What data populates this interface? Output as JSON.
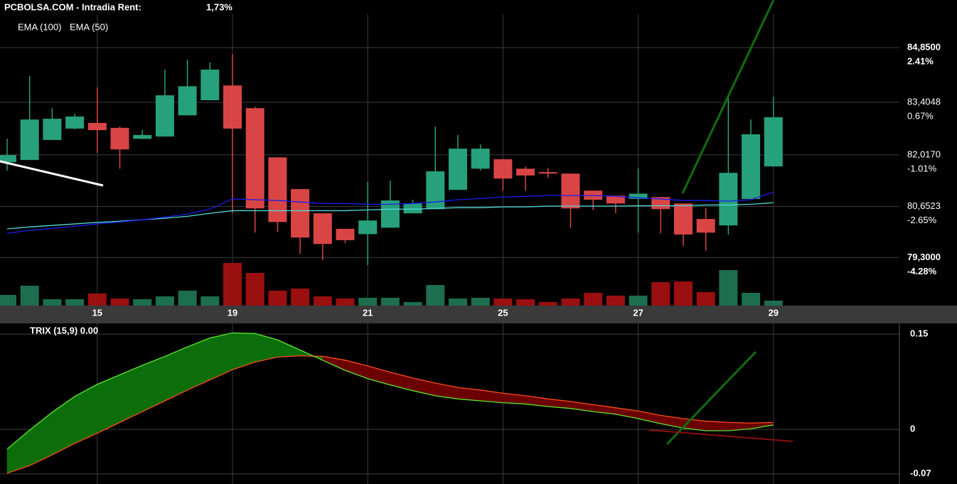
{
  "chart_data": [
    {
      "type": "candlestick",
      "title": "PCBOLSA.COM - Intradia  Rent:",
      "rent": "1,73%",
      "rent_color": "#3ce03c",
      "categories": [
        null,
        null,
        null,
        null,
        "15",
        null,
        null,
        null,
        null,
        null,
        "19",
        null,
        null,
        null,
        null,
        null,
        "21",
        null,
        null,
        null,
        null,
        null,
        "25",
        null,
        null,
        null,
        null,
        null,
        "27",
        null,
        null,
        null,
        null,
        null,
        "29"
      ],
      "open": [
        81.82,
        81.88,
        82.41,
        82.71,
        82.86,
        82.73,
        82.44,
        82.5,
        83.06,
        83.46,
        83.85,
        83.25,
        81.95,
        81.11,
        80.47,
        80.06,
        79.92,
        80.09,
        80.47,
        80.58,
        81.09,
        81.65,
        81.9,
        81.65,
        81.56,
        81.52,
        81.07,
        80.94,
        80.85,
        80.9,
        80.73,
        80.32,
        80.15,
        80.85,
        81.71
      ],
      "high": [
        82.44,
        84.1,
        83.25,
        83.1,
        83.8,
        82.76,
        82.67,
        84.27,
        84.53,
        84.46,
        84.68,
        83.29,
        81.95,
        81.11,
        80.47,
        80.06,
        81.3,
        81.33,
        80.83,
        82.76,
        82.54,
        82.29,
        81.9,
        81.71,
        81.67,
        81.52,
        81.07,
        80.94,
        81.65,
        80.9,
        80.73,
        80.6,
        83.52,
        82.95,
        83.55
      ],
      "low": [
        81.6,
        81.88,
        82.41,
        82.69,
        82.07,
        81.65,
        82.43,
        82.5,
        83.06,
        83.46,
        80.47,
        79.96,
        79.98,
        79.4,
        79.23,
        79.68,
        79.1,
        80.09,
        80.47,
        80.58,
        81.09,
        81.6,
        81.07,
        81.07,
        81.41,
        80.09,
        80.56,
        80.47,
        79.96,
        79.94,
        79.61,
        79.49,
        79.91,
        80.85,
        81.71
      ],
      "close": [
        82.01,
        82.95,
        82.97,
        83.03,
        82.67,
        82.16,
        82.54,
        83.59,
        83.83,
        84.27,
        82.71,
        80.6,
        80.24,
        79.83,
        79.66,
        79.76,
        80.28,
        80.81,
        80.73,
        81.58,
        82.18,
        82.18,
        81.39,
        81.47,
        81.52,
        80.6,
        80.83,
        80.73,
        80.99,
        80.58,
        79.91,
        79.96,
        81.54,
        82.56,
        83.01
      ],
      "up_color": "#26a17b",
      "down_color": "#d94545",
      "volume": [
        15,
        28,
        9,
        9,
        17,
        10,
        9,
        13,
        21,
        13,
        60,
        46,
        21,
        24,
        13,
        10,
        11,
        11,
        5,
        29,
        10,
        11,
        10,
        9,
        5,
        10,
        18,
        14,
        14,
        33,
        34,
        19,
        50,
        18,
        7
      ],
      "volume_up_color": "#1c6e4f",
      "volume_down_color": "#9a0f0f",
      "series": [
        {
          "name": "EMA (100)",
          "color": "#52d8d8",
          "values": [
            80.06,
            80.11,
            80.15,
            80.19,
            80.23,
            80.26,
            80.3,
            80.34,
            80.39,
            80.47,
            80.54,
            80.54,
            80.54,
            80.54,
            80.54,
            80.54,
            80.56,
            80.58,
            80.58,
            80.6,
            80.62,
            80.62,
            80.64,
            80.64,
            80.66,
            80.66,
            80.66,
            80.66,
            80.67,
            80.67,
            80.67,
            80.69,
            80.69,
            80.71,
            80.75
          ]
        },
        {
          "name": "EMA (50)",
          "color": "#1c1cf0",
          "values": [
            79.94,
            80.02,
            80.07,
            80.13,
            80.19,
            80.24,
            80.3,
            80.37,
            80.45,
            80.58,
            80.85,
            80.83,
            80.81,
            80.77,
            80.73,
            80.73,
            80.71,
            80.71,
            80.73,
            80.77,
            80.83,
            80.86,
            80.9,
            80.92,
            80.94,
            80.94,
            80.94,
            80.92,
            80.88,
            80.85,
            80.81,
            80.81,
            80.79,
            80.83,
            81.03
          ]
        }
      ],
      "ylim": [
        78.03,
        86.11
      ],
      "yticks": [
        {
          "value": 84.85,
          "label": "84,8500"
        },
        {
          "value": 83.4048,
          "label": "83,4048"
        },
        {
          "value": 82.017,
          "label": "82,0170"
        },
        {
          "value": 80.6523,
          "label": "80,6523"
        },
        {
          "value": 79.3,
          "label": "79,3000"
        }
      ],
      "ytick_changes": [
        "2.41%",
        "0.67%",
        "-1.01%",
        "-2.65%",
        "-4.28%"
      ],
      "ytick_change_colors": [
        "#3ce03c",
        "#3ce03c",
        "#ff3030",
        "#ff3030",
        "#ff3030"
      ],
      "grid": true
    },
    {
      "type": "line",
      "title": "TRIX (15,9) 0.00",
      "series": [
        {
          "color": "#5fe62a",
          "values": [
            -0.031,
            -0.001,
            0.027,
            0.052,
            0.071,
            0.086,
            0.101,
            0.115,
            0.13,
            0.144,
            0.152,
            0.151,
            0.141,
            0.125,
            0.109,
            0.093,
            0.08,
            0.07,
            0.061,
            0.053,
            0.048,
            0.045,
            0.042,
            0.04,
            0.036,
            0.033,
            0.028,
            0.024,
            0.017,
            0.009,
            0.002,
            -0.002,
            -0.002,
            0.001,
            0.007
          ]
        },
        {
          "color": "#ff4a1a",
          "values": [
            -0.069,
            -0.057,
            -0.04,
            -0.022,
            -0.006,
            0.011,
            0.028,
            0.045,
            0.062,
            0.078,
            0.094,
            0.106,
            0.114,
            0.116,
            0.115,
            0.109,
            0.1,
            0.09,
            0.081,
            0.073,
            0.066,
            0.062,
            0.057,
            0.053,
            0.048,
            0.044,
            0.039,
            0.034,
            0.029,
            0.022,
            0.017,
            0.013,
            0.011,
            0.01,
            0.011
          ]
        }
      ],
      "fill_colors": [
        "#0b6e0b",
        "#6a0000"
      ],
      "ylim": [
        -0.086,
        0.167
      ],
      "yticks": [
        0.15,
        0,
        -0.07
      ],
      "ytick_colors": [
        "#ff3a3a",
        "#ffffff",
        "#2f9e5c"
      ],
      "grid": true
    }
  ]
}
